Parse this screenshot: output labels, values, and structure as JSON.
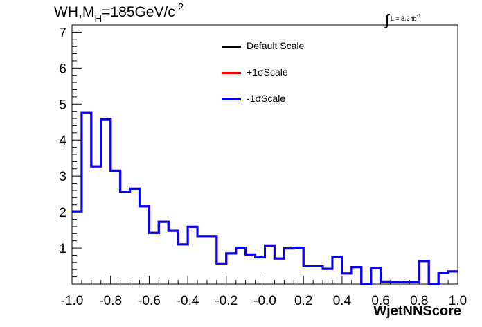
{
  "title": {
    "prefix": "WH,M",
    "subscript": "H",
    "suffix": "=185GeV/c",
    "superscript": "2"
  },
  "lumi": {
    "integral": "∫",
    "text": "L = 8.2 fb",
    "superscript": "-1"
  },
  "chart_data": {
    "type": "histogram",
    "xlabel": "WjetNNScore",
    "ylabel": "",
    "xlim": [
      -1.0,
      1.0
    ],
    "ylim": [
      0,
      7.2
    ],
    "x_ticks": [
      "-1.0",
      "-0.8",
      "-0.6",
      "-0.4",
      "-0.2",
      "-0.0",
      "0.2",
      "0.4",
      "0.6",
      "0.8",
      "1.0"
    ],
    "y_ticks": [
      "1",
      "2",
      "3",
      "4",
      "5",
      "6",
      "7"
    ],
    "bin_edges": [
      -1.0,
      -0.95,
      -0.9,
      -0.85,
      -0.8,
      -0.75,
      -0.7,
      -0.65,
      -0.6,
      -0.55,
      -0.5,
      -0.45,
      -0.4,
      -0.35,
      -0.3,
      -0.25,
      -0.2,
      -0.15,
      -0.1,
      -0.05,
      0.0,
      0.05,
      0.1,
      0.15,
      0.2,
      0.25,
      0.3,
      0.35,
      0.4,
      0.45,
      0.5,
      0.55,
      0.6,
      0.65,
      0.7,
      0.75,
      0.8,
      0.85,
      0.9,
      0.95,
      1.0
    ],
    "series": [
      {
        "name": "Default Scale",
        "color": "#000000",
        "values": [
          2.02,
          4.77,
          3.27,
          4.58,
          3.15,
          2.57,
          2.65,
          2.16,
          1.42,
          1.73,
          1.48,
          1.1,
          1.59,
          1.33,
          1.33,
          0.57,
          0.85,
          1.01,
          0.82,
          0.74,
          1.07,
          0.71,
          0.99,
          1.01,
          0.49,
          0.49,
          0.42,
          0.76,
          0.29,
          0.47,
          0.0,
          0.44,
          0.07,
          0.06,
          0.06,
          0.06,
          0.64,
          0.0,
          0.31,
          0.35
        ]
      },
      {
        "name": "+1σScale",
        "color": "#ff0000",
        "values": [
          2.02,
          4.77,
          3.27,
          4.58,
          3.15,
          2.57,
          2.65,
          2.16,
          1.42,
          1.73,
          1.48,
          1.1,
          1.59,
          1.33,
          1.33,
          0.57,
          0.85,
          1.01,
          0.82,
          0.74,
          1.07,
          0.71,
          0.99,
          1.01,
          0.49,
          0.49,
          0.42,
          0.76,
          0.29,
          0.47,
          0.0,
          0.44,
          0.07,
          0.06,
          0.06,
          0.06,
          0.64,
          0.0,
          0.31,
          0.35
        ]
      },
      {
        "name": "-1σScale",
        "color": "#0000ff",
        "values": [
          2.02,
          4.77,
          3.27,
          4.58,
          3.15,
          2.57,
          2.65,
          2.16,
          1.42,
          1.73,
          1.48,
          1.1,
          1.59,
          1.33,
          1.33,
          0.57,
          0.85,
          1.01,
          0.82,
          0.74,
          1.07,
          0.71,
          0.99,
          1.01,
          0.49,
          0.49,
          0.42,
          0.76,
          0.29,
          0.47,
          0.0,
          0.44,
          0.07,
          0.06,
          0.06,
          0.06,
          0.64,
          0.0,
          0.31,
          0.35
        ]
      }
    ],
    "legend_position": "top-center",
    "grid": false
  }
}
